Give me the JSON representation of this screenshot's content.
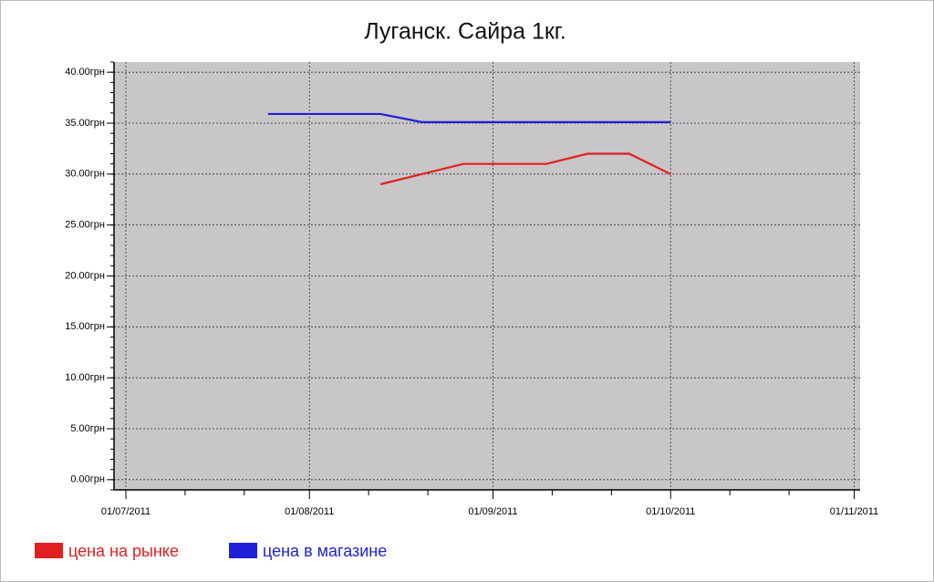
{
  "chart_data": {
    "type": "line",
    "title": "Луганск. Сайра 1кг.",
    "x": [
      "2011-07-25",
      "2011-08-06",
      "2011-08-13",
      "2011-08-20",
      "2011-08-27",
      "2011-09-03",
      "2011-09-10",
      "2011-09-17",
      "2011-09-24",
      "2011-10-01"
    ],
    "series": [
      {
        "name": "цена на рынке",
        "color": "#e02020",
        "values": [
          null,
          null,
          29,
          30,
          31,
          31,
          31,
          32,
          32,
          30
        ]
      },
      {
        "name": "цена в магазине",
        "color": "#1f1fd8",
        "values": [
          35.9,
          35.9,
          35.9,
          35.1,
          35.1,
          35.1,
          35.1,
          35.1,
          35.1,
          35.1
        ]
      }
    ],
    "xlim": [
      "2011-06-29",
      "2011-11-02"
    ],
    "xticks": [
      {
        "value": "2011-07-01",
        "label": "01/07/2011"
      },
      {
        "value": "2011-08-01",
        "label": "01/08/2011"
      },
      {
        "value": "2011-09-01",
        "label": "01/09/2011"
      },
      {
        "value": "2011-10-01",
        "label": "01/10/2011"
      },
      {
        "value": "2011-11-01",
        "label": "01/11/2011"
      }
    ],
    "ylim": [
      -1,
      41
    ],
    "yticks": [
      {
        "value": 0,
        "label": "0.00грн"
      },
      {
        "value": 5,
        "label": "5.00грн"
      },
      {
        "value": 10,
        "label": "10.00грн"
      },
      {
        "value": 15,
        "label": "15.00грн"
      },
      {
        "value": 20,
        "label": "20.00грн"
      },
      {
        "value": 25,
        "label": "25.00грн"
      },
      {
        "value": 30,
        "label": "30.00грн"
      },
      {
        "value": 35,
        "label": "35.00грн"
      },
      {
        "value": 40,
        "label": "40.00грн"
      }
    ],
    "grid": true,
    "background": "#c8c6c9",
    "legend": "bottom-left"
  }
}
